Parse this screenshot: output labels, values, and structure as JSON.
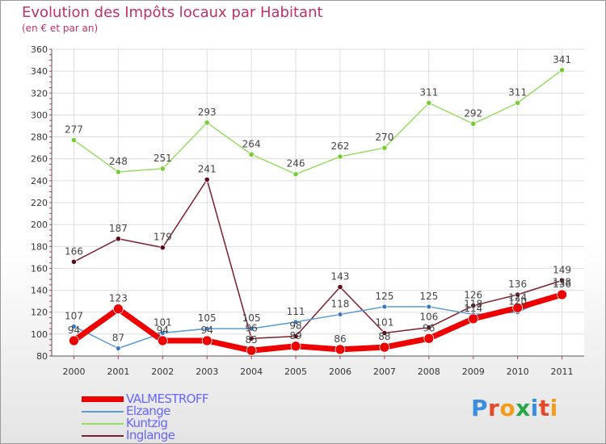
{
  "title": "Evolution des Impôts locaux par Habitant",
  "subtitle": "(en € et par an)",
  "logo": {
    "text": "Proxiti",
    "colors": [
      "#3a8ee0",
      "#e34a2a",
      "#f29c1a",
      "#2aa64a",
      "#3a8ee0",
      "#e34a2a",
      "#f29c1a"
    ]
  },
  "chart_data": {
    "type": "line",
    "title": "Evolution des Impôts locaux par Habitant",
    "subtitle": "(en € et par an)",
    "xlabel": "",
    "ylabel": "",
    "x": [
      "2000",
      "2001",
      "2002",
      "2003",
      "2004",
      "2005",
      "2006",
      "2007",
      "2008",
      "2009",
      "2010",
      "2011"
    ],
    "ylim": [
      80,
      360
    ],
    "yticks": [
      80,
      100,
      120,
      140,
      160,
      180,
      200,
      220,
      240,
      260,
      280,
      300,
      320,
      340,
      360
    ],
    "grid": true,
    "legend_position": "bottom-left",
    "series": [
      {
        "name": "VALMESTROFF",
        "color": "#ee0000",
        "values": [
          94,
          123,
          94,
          94,
          85,
          89,
          86,
          88,
          96,
          114,
          124,
          136
        ],
        "labels": [
          "94",
          "123",
          "94",
          "94",
          "85",
          "89",
          "86",
          "88",
          "96",
          "114",
          "124",
          "136"
        ]
      },
      {
        "name": "Elzange",
        "color": "#5a9bd4",
        "values": [
          107,
          87,
          101,
          105,
          105,
          111,
          118,
          125,
          125,
          118,
          120,
          138
        ],
        "labels": [
          "107",
          "87",
          "101",
          "105",
          "105",
          "111",
          "118",
          "125",
          "125",
          "118",
          "120",
          "138"
        ]
      },
      {
        "name": "Kuntzig",
        "color": "#99dd66",
        "values": [
          277,
          248,
          251,
          293,
          264,
          246,
          262,
          270,
          311,
          292,
          311,
          341
        ],
        "labels": [
          "277",
          "248",
          "251",
          "293",
          "264",
          "246",
          "262",
          "270",
          "311",
          "292",
          "311",
          "341"
        ]
      },
      {
        "name": "Inglange",
        "color": "#7a1f2b",
        "values": [
          166,
          187,
          179,
          241,
          96,
          98,
          143,
          101,
          106,
          126,
          136,
          149
        ],
        "labels": [
          "166",
          "187",
          "179",
          "241",
          "96",
          "98",
          "143",
          "101",
          "106",
          "126",
          "136",
          "149"
        ]
      }
    ]
  }
}
